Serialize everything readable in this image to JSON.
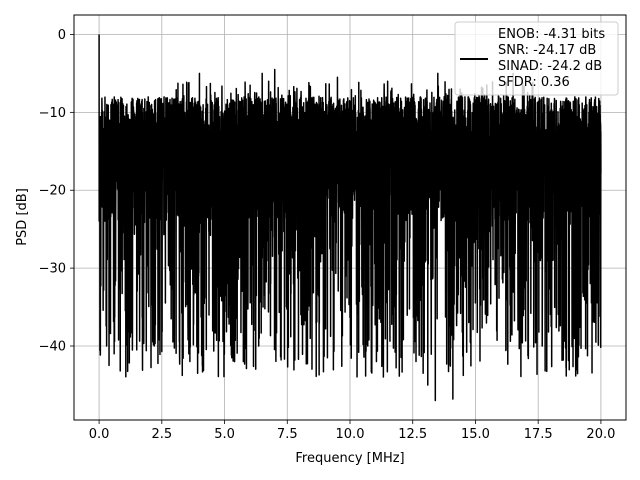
{
  "chart_data": {
    "type": "line",
    "xlabel": "Frequency [MHz]",
    "ylabel": "PSD [dB]",
    "xlim": [
      -1.0,
      21.0
    ],
    "ylim": [
      -49.5,
      2.5
    ],
    "xticks": [
      0.0,
      2.5,
      5.0,
      7.5,
      10.0,
      12.5,
      15.0,
      17.5,
      20.0
    ],
    "xtick_labels": [
      "0.0",
      "2.5",
      "5.0",
      "7.5",
      "10.0",
      "12.5",
      "15.0",
      "17.5",
      "20.0"
    ],
    "yticks": [
      0,
      -10,
      -20,
      -30,
      -40
    ],
    "ytick_labels": [
      "0",
      "−10",
      "−20",
      "−30",
      "−40"
    ],
    "grid": true,
    "legend_position": "top-right",
    "legend_entries": [
      "ENOB: -4.31 bits",
      "SNR: -24.17 dB",
      "SINAD: -24.2 dB",
      "SFDR: 0.36"
    ],
    "series": [
      {
        "name": "ENOB: -4.31 bits",
        "color": "#000000",
        "x_range": [
          0.0,
          20.0
        ],
        "typical_range_db": [
          -30,
          -8
        ],
        "peaks": [
          {
            "x": 0.0,
            "y": 0.0
          },
          {
            "x": 0.1,
            "y": -10.0
          },
          {
            "x": 0.25,
            "y": -11.0
          },
          {
            "x": 1.8,
            "y": -11.0
          },
          {
            "x": 4.0,
            "y": -5.0
          },
          {
            "x": 6.5,
            "y": -5.0
          },
          {
            "x": 7.0,
            "y": -4.5
          },
          {
            "x": 9.5,
            "y": -5.5
          },
          {
            "x": 11.5,
            "y": -6.0
          },
          {
            "x": 13.5,
            "y": -5.0
          },
          {
            "x": 16.5,
            "y": -5.0
          }
        ],
        "dips": [
          {
            "x": 0.3,
            "y": -40.0
          },
          {
            "x": 0.6,
            "y": -41.0
          },
          {
            "x": 1.5,
            "y": -40.5
          },
          {
            "x": 2.2,
            "y": -40.0
          },
          {
            "x": 5.4,
            "y": -42.0
          },
          {
            "x": 6.5,
            "y": -40.5
          },
          {
            "x": 7.8,
            "y": -41.8
          },
          {
            "x": 9.1,
            "y": -41.5
          },
          {
            "x": 13.1,
            "y": -45.0
          },
          {
            "x": 13.4,
            "y": -47.0
          },
          {
            "x": 14.1,
            "y": -46.8
          },
          {
            "x": 19.8,
            "y": -39.5
          }
        ]
      }
    ]
  }
}
